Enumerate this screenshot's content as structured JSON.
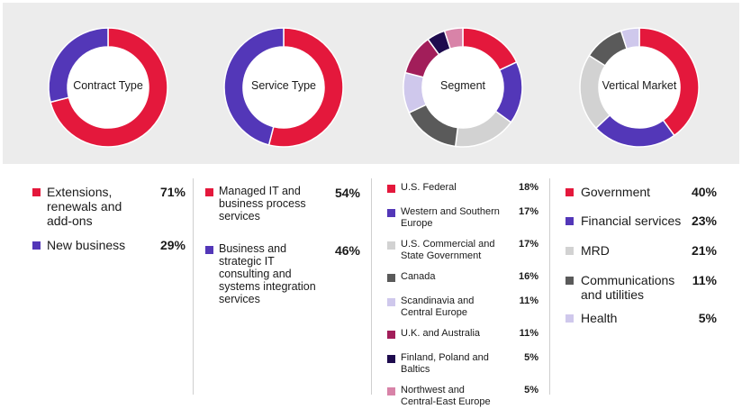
{
  "colors": {
    "red": "#e4183c",
    "purple": "#5337b8",
    "lightgray": "#d2d2d2",
    "darkgray": "#5a5a5a",
    "lavender": "#cfc8ec",
    "magenta": "#a21e5a",
    "navy": "#1e0b4e",
    "pink": "#d883a8"
  },
  "chart_data": [
    {
      "type": "pie",
      "title": "Contract Type",
      "categories": [
        "Extensions, renewals and add-ons",
        "New business"
      ],
      "values": [
        71,
        29
      ],
      "colors": [
        "#e4183c",
        "#5337b8"
      ],
      "value_labels": [
        "71%",
        "29%"
      ]
    },
    {
      "type": "pie",
      "title": "Service Type",
      "categories": [
        "Managed IT and business process services",
        "Business and strategic IT consulting and systems integration services"
      ],
      "values": [
        54,
        46
      ],
      "colors": [
        "#e4183c",
        "#5337b8"
      ],
      "value_labels": [
        "54%",
        "46%"
      ]
    },
    {
      "type": "pie",
      "title": "Segment",
      "categories": [
        "U.S. Federal",
        "Western and Southern Europe",
        "U.S. Commercial and State Government",
        "Canada",
        "Scandinavia and Central Europe",
        "U.K. and Australia",
        "Finland, Poland and Baltics",
        "Northwest and Central-East Europe"
      ],
      "values": [
        18,
        17,
        17,
        16,
        11,
        11,
        5,
        5
      ],
      "colors": [
        "#e4183c",
        "#5337b8",
        "#d2d2d2",
        "#5a5a5a",
        "#cfc8ec",
        "#a21e5a",
        "#1e0b4e",
        "#d883a8"
      ],
      "value_labels": [
        "18%",
        "17%",
        "17%",
        "16%",
        "11%",
        "11%",
        "5%",
        "5%"
      ]
    },
    {
      "type": "pie",
      "title": "Vertical Market",
      "categories": [
        "Government",
        "Financial services",
        "MRD",
        "Communications and utilities",
        "Health"
      ],
      "values": [
        40,
        23,
        21,
        11,
        5
      ],
      "colors": [
        "#e4183c",
        "#5337b8",
        "#d2d2d2",
        "#5a5a5a",
        "#cfc8ec"
      ],
      "value_labels": [
        "40%",
        "23%",
        "21%",
        "11%",
        "5%"
      ]
    }
  ]
}
